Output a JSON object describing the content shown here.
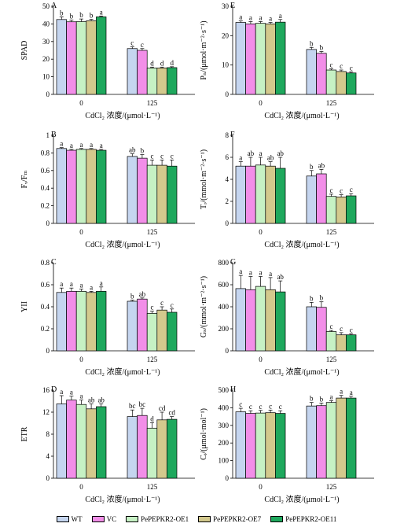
{
  "legend": [
    {
      "name": "WT",
      "color": "#c5d5ef"
    },
    {
      "name": "VC",
      "color": "#f28ee8"
    },
    {
      "name": "PePEPKR2-OE1",
      "color": "#c6f1c4"
    },
    {
      "name": "PePEPKR2-OE7",
      "color": "#d3c98d"
    },
    {
      "name": "PePEPKR2-OE11",
      "color": "#1ea85d"
    }
  ],
  "chart_data": [
    {
      "type": "bar",
      "panel": "A",
      "ylabel": "SPAD",
      "xlabel": "CdCl₂ 浓度/(μmol·L⁻¹)",
      "categories": [
        "0",
        "125"
      ],
      "ylim": [
        0,
        50
      ],
      "yticks": [
        0,
        10,
        20,
        30,
        40,
        50
      ],
      "series": [
        {
          "name": "WT",
          "values": [
            42.5,
            26
          ],
          "err": [
            1.5,
            1
          ],
          "letters": [
            "b",
            "c"
          ]
        },
        {
          "name": "VC",
          "values": [
            41.2,
            25
          ],
          "err": [
            1,
            1
          ],
          "letters": [
            "b",
            "c"
          ]
        },
        {
          "name": "PePEPKR2-OE1",
          "values": [
            41.3,
            15
          ],
          "err": [
            1.5,
            0.5
          ],
          "letters": [
            "b",
            "d"
          ]
        },
        {
          "name": "PePEPKR2-OE7",
          "values": [
            41.8,
            15
          ],
          "err": [
            0.8,
            0.5
          ],
          "letters": [
            "b",
            "d"
          ]
        },
        {
          "name": "PePEPKR2-OE11",
          "values": [
            44,
            15.2
          ],
          "err": [
            0.5,
            0.5
          ],
          "letters": [
            "a",
            "d"
          ]
        }
      ]
    },
    {
      "type": "bar",
      "panel": "E",
      "ylabel": "Pₙ/(μmol·m⁻²·s⁻¹)",
      "xlabel": "CdCl₂ 浓度/(μmol·L⁻¹)",
      "categories": [
        "0",
        "125"
      ],
      "ylim": [
        0,
        30
      ],
      "yticks": [
        0,
        10,
        20,
        30
      ],
      "series": [
        {
          "name": "WT",
          "values": [
            24.5,
            15.3
          ],
          "err": [
            0.5,
            0.7
          ],
          "letters": [
            "a",
            "b"
          ]
        },
        {
          "name": "VC",
          "values": [
            24,
            14
          ],
          "err": [
            0.8,
            0.6
          ],
          "letters": [
            "a",
            "b"
          ]
        },
        {
          "name": "PePEPKR2-OE1",
          "values": [
            24.2,
            8.3
          ],
          "err": [
            0.6,
            0.4
          ],
          "letters": [
            "a",
            "c"
          ]
        },
        {
          "name": "PePEPKR2-OE7",
          "values": [
            24,
            7.8
          ],
          "err": [
            0.5,
            0.5
          ],
          "letters": [
            "a",
            "c"
          ]
        },
        {
          "name": "PePEPKR2-OE11",
          "values": [
            24.6,
            7.3
          ],
          "err": [
            0.9,
            0.4
          ],
          "letters": [
            "a",
            "c"
          ]
        }
      ]
    },
    {
      "type": "bar",
      "panel": "B",
      "ylabel": "Fᵥ/Fₘ",
      "xlabel": "CdCl₂ 浓度/(μmol·L⁻¹)",
      "categories": [
        "0",
        "125"
      ],
      "ylim": [
        0,
        1.0
      ],
      "yticks": [
        0,
        0.2,
        0.4,
        0.6,
        0.8,
        1.0
      ],
      "series": [
        {
          "name": "WT",
          "values": [
            0.85,
            0.76
          ],
          "err": [
            0.01,
            0.03
          ],
          "letters": [
            "a",
            "ab"
          ]
        },
        {
          "name": "VC",
          "values": [
            0.83,
            0.74
          ],
          "err": [
            0.01,
            0.04
          ],
          "letters": [
            "a",
            "b"
          ]
        },
        {
          "name": "PePEPKR2-OE1",
          "values": [
            0.84,
            0.66
          ],
          "err": [
            0.01,
            0.06
          ],
          "letters": [
            "a",
            "c"
          ]
        },
        {
          "name": "PePEPKR2-OE7",
          "values": [
            0.84,
            0.66
          ],
          "err": [
            0.01,
            0.06
          ],
          "letters": [
            "a",
            "c"
          ]
        },
        {
          "name": "PePEPKR2-OE11",
          "values": [
            0.83,
            0.65
          ],
          "err": [
            0.01,
            0.07
          ],
          "letters": [
            "a",
            "c"
          ]
        }
      ]
    },
    {
      "type": "bar",
      "panel": "F",
      "ylabel": "Tᵣ/(mmol·m⁻²·s⁻¹)",
      "xlabel": "CdCl₂ 浓度/(μmol·L⁻¹)",
      "categories": [
        "0",
        "125"
      ],
      "ylim": [
        0,
        8
      ],
      "yticks": [
        0,
        2,
        4,
        6,
        8
      ],
      "series": [
        {
          "name": "WT",
          "values": [
            5.2,
            4.3
          ],
          "err": [
            0.4,
            0.5
          ],
          "letters": [
            "a",
            "b"
          ]
        },
        {
          "name": "VC",
          "values": [
            5.2,
            4.5
          ],
          "err": [
            0.8,
            0.4
          ],
          "letters": [
            "ab",
            "ab"
          ]
        },
        {
          "name": "PePEPKR2-OE1",
          "values": [
            5.3,
            2.45
          ],
          "err": [
            0.7,
            0.2
          ],
          "letters": [
            "a",
            "c"
          ]
        },
        {
          "name": "PePEPKR2-OE7",
          "values": [
            5.2,
            2.4
          ],
          "err": [
            0.4,
            0.2
          ],
          "letters": [
            "ab",
            "c"
          ]
        },
        {
          "name": "PePEPKR2-OE11",
          "values": [
            5.0,
            2.5
          ],
          "err": [
            1.0,
            0.2
          ],
          "letters": [
            "ab",
            "c"
          ]
        }
      ]
    },
    {
      "type": "bar",
      "panel": "C",
      "ylabel": "YII",
      "xlabel": "CdCl₂ 浓度/(μmol·L⁻¹)",
      "categories": [
        "0",
        "125"
      ],
      "ylim": [
        0,
        0.8
      ],
      "yticks": [
        0,
        0.2,
        0.4,
        0.6,
        0.8
      ],
      "series": [
        {
          "name": "WT",
          "values": [
            0.53,
            0.45
          ],
          "err": [
            0.04,
            0.01
          ],
          "letters": [
            "a",
            "b"
          ]
        },
        {
          "name": "VC",
          "values": [
            0.54,
            0.47
          ],
          "err": [
            0.03,
            0.01
          ],
          "letters": [
            "a",
            "ab"
          ]
        },
        {
          "name": "PePEPKR2-OE1",
          "values": [
            0.54,
            0.34
          ],
          "err": [
            0.02,
            0.02
          ],
          "letters": [
            "a",
            "c"
          ]
        },
        {
          "name": "PePEPKR2-OE7",
          "values": [
            0.53,
            0.37
          ],
          "err": [
            0.01,
            0.03
          ],
          "letters": [
            "a",
            "c"
          ]
        },
        {
          "name": "PePEPKR2-OE11",
          "values": [
            0.54,
            0.35
          ],
          "err": [
            0.04,
            0.03
          ],
          "letters": [
            "a",
            "c"
          ]
        }
      ]
    },
    {
      "type": "bar",
      "panel": "G",
      "ylabel": "Gₛ/(mmol·m⁻²·s⁻¹)",
      "xlabel": "CdCl₂ 浓度/(μmol·L⁻¹)",
      "categories": [
        "0",
        "125"
      ],
      "ylim": [
        0,
        800
      ],
      "yticks": [
        0,
        200,
        400,
        600,
        800
      ],
      "series": [
        {
          "name": "WT",
          "values": [
            565,
            400
          ],
          "err": [
            120,
            40
          ],
          "letters": [
            "a",
            "b"
          ]
        },
        {
          "name": "VC",
          "values": [
            555,
            395
          ],
          "err": [
            120,
            50
          ],
          "letters": [
            "a",
            "b"
          ]
        },
        {
          "name": "PePEPKR2-OE1",
          "values": [
            585,
            175
          ],
          "err": [
            90,
            10
          ],
          "letters": [
            "a",
            "c"
          ]
        },
        {
          "name": "PePEPKR2-OE7",
          "values": [
            555,
            145
          ],
          "err": [
            110,
            20
          ],
          "letters": [
            "a",
            "c"
          ]
        },
        {
          "name": "PePEPKR2-OE11",
          "values": [
            535,
            145
          ],
          "err": [
            100,
            10
          ],
          "letters": [
            "ab",
            "c"
          ]
        }
      ]
    },
    {
      "type": "bar",
      "panel": "D",
      "ylabel": "ETR",
      "xlabel": "CdCl₂ 浓度/(μmol·L⁻¹)",
      "categories": [
        "0",
        "125"
      ],
      "ylim": [
        0,
        16
      ],
      "yticks": [
        0,
        4,
        8,
        12,
        16
      ],
      "series": [
        {
          "name": "WT",
          "values": [
            13.5,
            11.2
          ],
          "err": [
            1.5,
            1.2
          ],
          "letters": [
            "a",
            "bc"
          ]
        },
        {
          "name": "VC",
          "values": [
            14.2,
            11.4
          ],
          "err": [
            0.7,
            1.3
          ],
          "letters": [
            "a",
            "bc"
          ]
        },
        {
          "name": "PePEPKR2-OE1",
          "values": [
            13.4,
            9.1
          ],
          "err": [
            0.8,
            1.0
          ],
          "letters": [
            "a",
            "d"
          ]
        },
        {
          "name": "PePEPKR2-OE7",
          "values": [
            12.6,
            10.6
          ],
          "err": [
            0.9,
            1.4
          ],
          "letters": [
            "ab",
            "cd"
          ]
        },
        {
          "name": "PePEPKR2-OE11",
          "values": [
            13.0,
            10.7
          ],
          "err": [
            0.5,
            0.5
          ],
          "letters": [
            "ab",
            "cd"
          ]
        }
      ]
    },
    {
      "type": "bar",
      "panel": "H",
      "ylabel": "Cᵢ/(μmol·mol⁻¹)",
      "xlabel": "CdCl₂ 浓度/(μmol·L⁻¹)",
      "categories": [
        "0",
        "125"
      ],
      "ylim": [
        0,
        500
      ],
      "yticks": [
        0,
        100,
        200,
        300,
        400,
        500
      ],
      "series": [
        {
          "name": "WT",
          "values": [
            377,
            410
          ],
          "err": [
            20,
            20
          ],
          "letters": [
            "c",
            "b"
          ]
        },
        {
          "name": "VC",
          "values": [
            368,
            412
          ],
          "err": [
            15,
            15
          ],
          "letters": [
            "c",
            "b"
          ]
        },
        {
          "name": "PePEPKR2-OE1",
          "values": [
            370,
            430
          ],
          "err": [
            15,
            10
          ],
          "letters": [
            "c",
            "a"
          ]
        },
        {
          "name": "PePEPKR2-OE7",
          "values": [
            372,
            455
          ],
          "err": [
            15,
            15
          ],
          "letters": [
            "c",
            "a"
          ]
        },
        {
          "name": "PePEPKR2-OE11",
          "values": [
            368,
            455
          ],
          "err": [
            15,
            10
          ],
          "letters": [
            "c",
            "a"
          ]
        }
      ]
    }
  ]
}
